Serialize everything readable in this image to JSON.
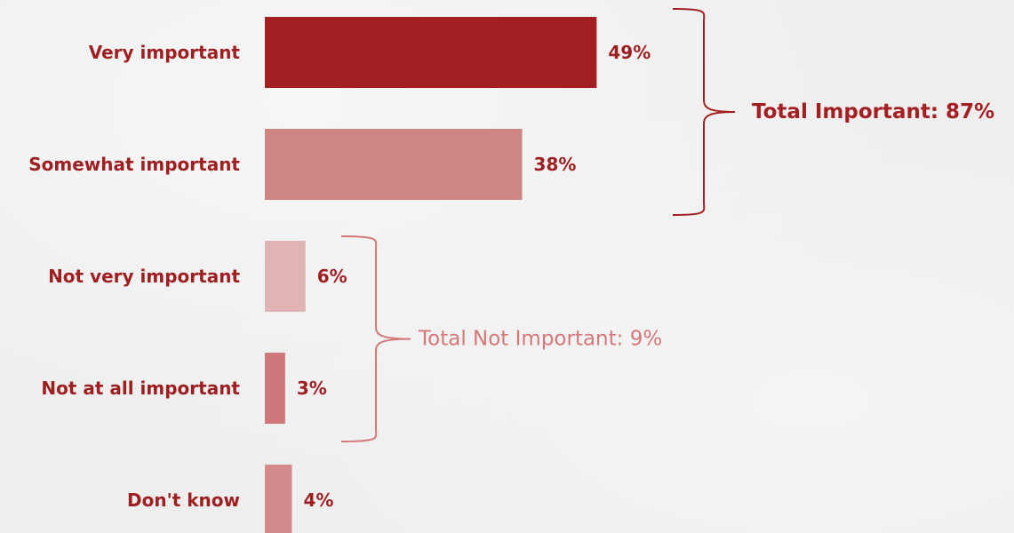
{
  "chart_data": {
    "type": "bar",
    "orientation": "horizontal",
    "categories": [
      "Very important",
      "Somewhat important",
      "Not very important",
      "Not at all important",
      "Don't know"
    ],
    "values": [
      49,
      38,
      6,
      3,
      4
    ],
    "value_labels": [
      "49%",
      "38%",
      "6%",
      "3%",
      "4%"
    ],
    "bar_colors": [
      "#a31f22",
      "#cd8683",
      "#e0b4b4",
      "#cf787b",
      "#d48a8b"
    ],
    "xlim": [
      0,
      100
    ],
    "grid": false,
    "groups": [
      {
        "label": "Total Important: 87%",
        "members": [
          0,
          1
        ],
        "color": "#a31f22"
      },
      {
        "label": "Total Not Important: 9%",
        "members": [
          2,
          3
        ],
        "color": "#d4787a"
      }
    ]
  }
}
